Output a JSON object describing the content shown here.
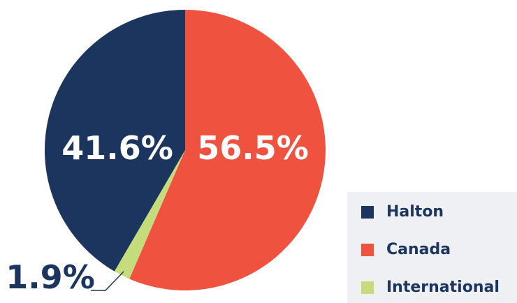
{
  "chart_data": {
    "type": "pie",
    "categories": [
      "Halton",
      "Canada",
      "International"
    ],
    "values": [
      41.6,
      56.5,
      1.9
    ],
    "value_labels": [
      "41.6%",
      "56.5%",
      "1.9%"
    ],
    "colors": [
      "#1c355e",
      "#ef5340",
      "#c4dc7b"
    ],
    "label_color_inside": "#ffffff",
    "label_color_outside": "#1c355e",
    "legend_position": "bottom-right",
    "start": "12 o'clock",
    "direction": "clockwise",
    "slice_order": [
      "Canada",
      "International",
      "Halton"
    ]
  },
  "legend": {
    "items": [
      {
        "label": "Halton",
        "color": "#1c355e"
      },
      {
        "label": "Canada",
        "color": "#ef5340"
      },
      {
        "label": "International",
        "color": "#c4dc7b"
      }
    ]
  }
}
